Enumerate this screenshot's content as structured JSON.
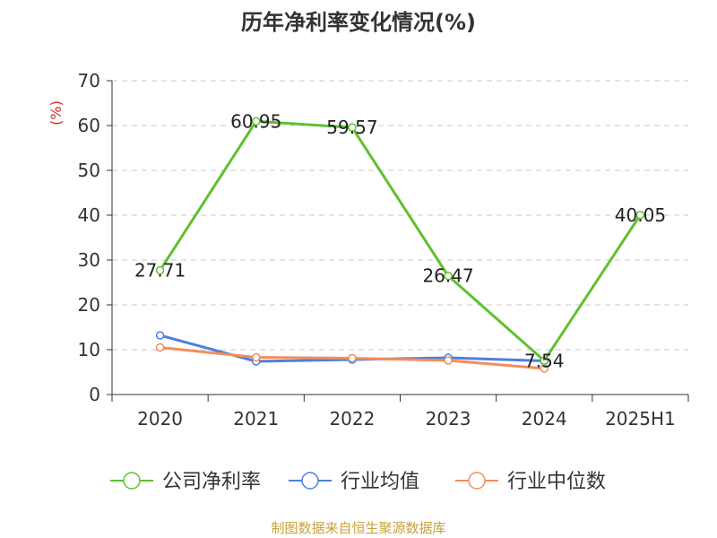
{
  "chart_data": {
    "type": "line",
    "title": "历年净利率变化情况(%)",
    "ylabel": "(%)",
    "categories": [
      "2020",
      "2021",
      "2022",
      "2023",
      "2024",
      "2025H1"
    ],
    "ylim": [
      0,
      70
    ],
    "yticks": [
      0,
      10,
      20,
      30,
      40,
      50,
      60,
      70
    ],
    "grid": true,
    "legend_position": "bottom",
    "series": [
      {
        "name": "公司净利率",
        "color": "#5ec12f",
        "values": [
          27.71,
          60.95,
          59.57,
          26.47,
          7.54,
          40.05
        ],
        "labels": [
          "27.71",
          "60.95",
          "59.57",
          "26.47",
          "7.54",
          "40.05"
        ]
      },
      {
        "name": "行业均值",
        "color": "#4f7fe0",
        "values": [
          13.2,
          7.4,
          7.8,
          8.2,
          7.5,
          null
        ]
      },
      {
        "name": "行业中位数",
        "color": "#f28e5b",
        "values": [
          10.5,
          8.3,
          8.1,
          7.6,
          5.8,
          null
        ]
      }
    ]
  },
  "source_text": "制图数据来自恒生聚源数据库",
  "colors": {
    "source": "#c8a23a",
    "ylabel": "#d9262c",
    "grid": "#c8c8c8",
    "axis": "#333333"
  }
}
